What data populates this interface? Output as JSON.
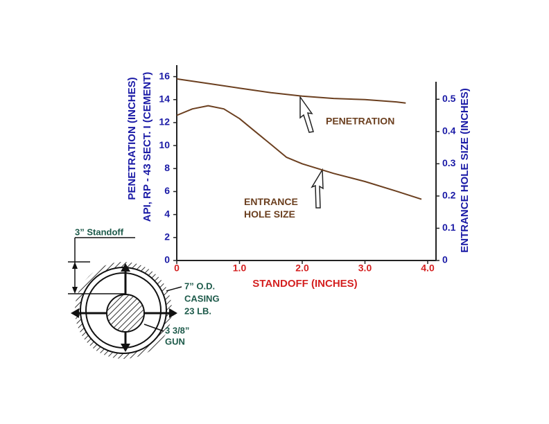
{
  "chart_data": {
    "type": "line",
    "y_label": [
      "PENETRATION (INCHES)",
      "API, RP - 43 SECT. I (CEMENT)"
    ],
    "y2_label": "ENTRANCE HOLE SIZE (INCHES)",
    "x_label": "STANDOFF  (INCHES)",
    "xlim": [
      0,
      4
    ],
    "ylim": [
      0,
      17
    ],
    "y2lim": [
      0,
      0.55
    ],
    "xticks": [
      0,
      {
        "value": 1,
        "label": "1.0"
      },
      {
        "value": 2,
        "label": "2.0"
      },
      {
        "value": 3,
        "label": "3.0"
      },
      {
        "value": 4,
        "label": "4.0"
      }
    ],
    "yticks": [
      0,
      2,
      4,
      6,
      8,
      10,
      12,
      14,
      16
    ],
    "y2ticks": [
      0,
      0.1,
      0.2,
      0.3,
      0.4,
      0.5
    ],
    "series": [
      {
        "name": "PENETRATION",
        "color": "#6b3f1f",
        "x": [
          0,
          0.5,
          1,
          1.5,
          2,
          2.5,
          3,
          3.5,
          3.65
        ],
        "values": [
          15.8,
          15.4,
          15.0,
          14.6,
          14.3,
          14.1,
          14.0,
          13.8,
          13.7
        ]
      },
      {
        "name": "ENTRANCE HOLE SIZE",
        "color": "#6b3f1f",
        "axis": "y2",
        "x": [
          0,
          0.25,
          0.5,
          0.75,
          1,
          1.25,
          1.5,
          1.75,
          2,
          2.5,
          3,
          3.5,
          3.9
        ],
        "values": [
          0.45,
          0.47,
          0.48,
          0.47,
          0.44,
          0.4,
          0.36,
          0.32,
          0.3,
          0.27,
          0.245,
          0.215,
          0.19
        ]
      }
    ],
    "diagram": {
      "standoff": "3” Standoff",
      "casing": [
        "7” O.D.",
        "CASING",
        "23 LB."
      ],
      "gun": [
        "3 3/8”",
        "GUN"
      ]
    }
  }
}
